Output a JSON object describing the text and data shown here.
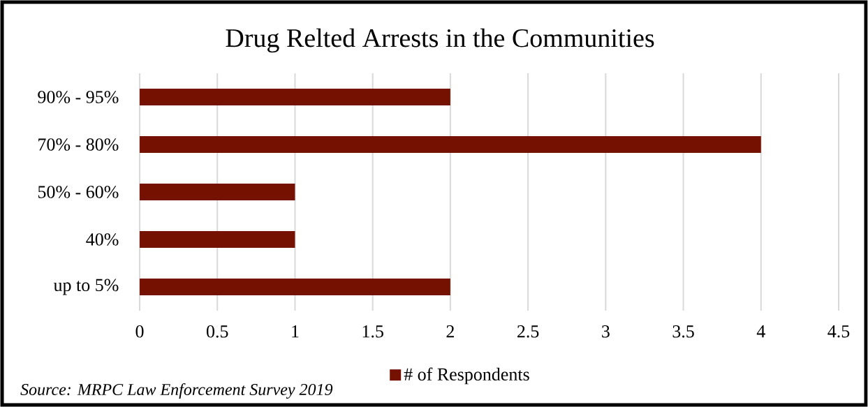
{
  "chart_data": {
    "type": "bar",
    "orientation": "horizontal",
    "title": "Drug Relted Arrests in the Communities",
    "categories": [
      "90% - 95%",
      "70% - 80%",
      "50% - 60%",
      "40%",
      "up to 5%"
    ],
    "series": [
      {
        "name": "# of Respondents",
        "color": "#741100",
        "values": [
          2,
          4,
          1,
          1,
          2
        ]
      }
    ],
    "xlim": [
      0,
      4.5
    ],
    "xticks": [
      0,
      0.5,
      1,
      1.5,
      2,
      2.5,
      3,
      3.5,
      4,
      4.5
    ],
    "grid": "x",
    "legend": "bottom",
    "annotations": [
      "Source: MRPC Law Enforcement Survey 2019"
    ]
  }
}
